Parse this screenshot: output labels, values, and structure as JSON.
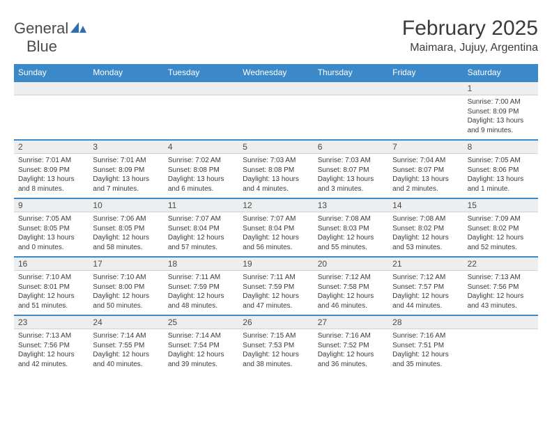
{
  "colors": {
    "header_bg": "#3b89c9",
    "header_text": "#ffffff",
    "date_bg": "#eceeef",
    "row_border": "#3b89c9",
    "text": "#3a3a3a",
    "logo_gray": "#4a4a4a",
    "logo_blue": "#2d6fb5"
  },
  "logo": {
    "part1": "General",
    "part2": "Blue"
  },
  "title": "February 2025",
  "location": "Maimara, Jujuy, Argentina",
  "day_headers": [
    "Sunday",
    "Monday",
    "Tuesday",
    "Wednesday",
    "Thursday",
    "Friday",
    "Saturday"
  ],
  "weeks": [
    [
      {
        "date": "",
        "lines": []
      },
      {
        "date": "",
        "lines": []
      },
      {
        "date": "",
        "lines": []
      },
      {
        "date": "",
        "lines": []
      },
      {
        "date": "",
        "lines": []
      },
      {
        "date": "",
        "lines": []
      },
      {
        "date": "1",
        "lines": [
          "Sunrise: 7:00 AM",
          "Sunset: 8:09 PM",
          "Daylight: 13 hours",
          "and 9 minutes."
        ]
      }
    ],
    [
      {
        "date": "2",
        "lines": [
          "Sunrise: 7:01 AM",
          "Sunset: 8:09 PM",
          "Daylight: 13 hours",
          "and 8 minutes."
        ]
      },
      {
        "date": "3",
        "lines": [
          "Sunrise: 7:01 AM",
          "Sunset: 8:09 PM",
          "Daylight: 13 hours",
          "and 7 minutes."
        ]
      },
      {
        "date": "4",
        "lines": [
          "Sunrise: 7:02 AM",
          "Sunset: 8:08 PM",
          "Daylight: 13 hours",
          "and 6 minutes."
        ]
      },
      {
        "date": "5",
        "lines": [
          "Sunrise: 7:03 AM",
          "Sunset: 8:08 PM",
          "Daylight: 13 hours",
          "and 4 minutes."
        ]
      },
      {
        "date": "6",
        "lines": [
          "Sunrise: 7:03 AM",
          "Sunset: 8:07 PM",
          "Daylight: 13 hours",
          "and 3 minutes."
        ]
      },
      {
        "date": "7",
        "lines": [
          "Sunrise: 7:04 AM",
          "Sunset: 8:07 PM",
          "Daylight: 13 hours",
          "and 2 minutes."
        ]
      },
      {
        "date": "8",
        "lines": [
          "Sunrise: 7:05 AM",
          "Sunset: 8:06 PM",
          "Daylight: 13 hours",
          "and 1 minute."
        ]
      }
    ],
    [
      {
        "date": "9",
        "lines": [
          "Sunrise: 7:05 AM",
          "Sunset: 8:05 PM",
          "Daylight: 13 hours",
          "and 0 minutes."
        ]
      },
      {
        "date": "10",
        "lines": [
          "Sunrise: 7:06 AM",
          "Sunset: 8:05 PM",
          "Daylight: 12 hours",
          "and 58 minutes."
        ]
      },
      {
        "date": "11",
        "lines": [
          "Sunrise: 7:07 AM",
          "Sunset: 8:04 PM",
          "Daylight: 12 hours",
          "and 57 minutes."
        ]
      },
      {
        "date": "12",
        "lines": [
          "Sunrise: 7:07 AM",
          "Sunset: 8:04 PM",
          "Daylight: 12 hours",
          "and 56 minutes."
        ]
      },
      {
        "date": "13",
        "lines": [
          "Sunrise: 7:08 AM",
          "Sunset: 8:03 PM",
          "Daylight: 12 hours",
          "and 55 minutes."
        ]
      },
      {
        "date": "14",
        "lines": [
          "Sunrise: 7:08 AM",
          "Sunset: 8:02 PM",
          "Daylight: 12 hours",
          "and 53 minutes."
        ]
      },
      {
        "date": "15",
        "lines": [
          "Sunrise: 7:09 AM",
          "Sunset: 8:02 PM",
          "Daylight: 12 hours",
          "and 52 minutes."
        ]
      }
    ],
    [
      {
        "date": "16",
        "lines": [
          "Sunrise: 7:10 AM",
          "Sunset: 8:01 PM",
          "Daylight: 12 hours",
          "and 51 minutes."
        ]
      },
      {
        "date": "17",
        "lines": [
          "Sunrise: 7:10 AM",
          "Sunset: 8:00 PM",
          "Daylight: 12 hours",
          "and 50 minutes."
        ]
      },
      {
        "date": "18",
        "lines": [
          "Sunrise: 7:11 AM",
          "Sunset: 7:59 PM",
          "Daylight: 12 hours",
          "and 48 minutes."
        ]
      },
      {
        "date": "19",
        "lines": [
          "Sunrise: 7:11 AM",
          "Sunset: 7:59 PM",
          "Daylight: 12 hours",
          "and 47 minutes."
        ]
      },
      {
        "date": "20",
        "lines": [
          "Sunrise: 7:12 AM",
          "Sunset: 7:58 PM",
          "Daylight: 12 hours",
          "and 46 minutes."
        ]
      },
      {
        "date": "21",
        "lines": [
          "Sunrise: 7:12 AM",
          "Sunset: 7:57 PM",
          "Daylight: 12 hours",
          "and 44 minutes."
        ]
      },
      {
        "date": "22",
        "lines": [
          "Sunrise: 7:13 AM",
          "Sunset: 7:56 PM",
          "Daylight: 12 hours",
          "and 43 minutes."
        ]
      }
    ],
    [
      {
        "date": "23",
        "lines": [
          "Sunrise: 7:13 AM",
          "Sunset: 7:56 PM",
          "Daylight: 12 hours",
          "and 42 minutes."
        ]
      },
      {
        "date": "24",
        "lines": [
          "Sunrise: 7:14 AM",
          "Sunset: 7:55 PM",
          "Daylight: 12 hours",
          "and 40 minutes."
        ]
      },
      {
        "date": "25",
        "lines": [
          "Sunrise: 7:14 AM",
          "Sunset: 7:54 PM",
          "Daylight: 12 hours",
          "and 39 minutes."
        ]
      },
      {
        "date": "26",
        "lines": [
          "Sunrise: 7:15 AM",
          "Sunset: 7:53 PM",
          "Daylight: 12 hours",
          "and 38 minutes."
        ]
      },
      {
        "date": "27",
        "lines": [
          "Sunrise: 7:16 AM",
          "Sunset: 7:52 PM",
          "Daylight: 12 hours",
          "and 36 minutes."
        ]
      },
      {
        "date": "28",
        "lines": [
          "Sunrise: 7:16 AM",
          "Sunset: 7:51 PM",
          "Daylight: 12 hours",
          "and 35 minutes."
        ]
      },
      {
        "date": "",
        "lines": []
      }
    ]
  ]
}
